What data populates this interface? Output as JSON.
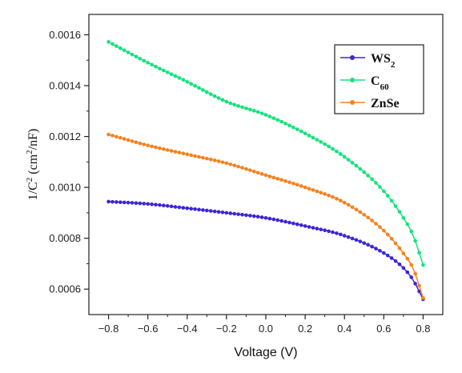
{
  "chart_data": {
    "type": "line",
    "title": "",
    "xlabel": "Voltage (V)",
    "ylabel": {
      "prefix": "1/C",
      "prefix_sup": "2",
      "unit_open": " (cm",
      "unit_sup": "2",
      "unit_close": "/nF)"
    },
    "xlim": [
      -0.9,
      0.9
    ],
    "ylim": [
      0.0005,
      0.00168
    ],
    "xticks": [
      -0.8,
      -0.6,
      -0.4,
      -0.2,
      0.0,
      0.2,
      0.4,
      0.6,
      0.8
    ],
    "xtick_labels": [
      "−0.8",
      "−0.6",
      "−0.4",
      "−0.2",
      "0.0",
      "0.2",
      "0.4",
      "0.6",
      "0.8"
    ],
    "yticks": [
      0.0006,
      0.0008,
      0.001,
      0.0012,
      0.0014,
      0.0016
    ],
    "ytick_labels": [
      "0.0006",
      "0.0008",
      "0.0010",
      "0.0012",
      "0.0014",
      "0.0016"
    ],
    "grid": false,
    "legend_position": "top-right",
    "x": [
      -0.8,
      -0.6,
      -0.4,
      -0.2,
      0.0,
      0.2,
      0.4,
      0.6,
      0.7,
      0.75,
      0.8
    ],
    "series": [
      {
        "name": "WS",
        "name_sub": "2",
        "color": "#3b27d4",
        "values": [
          0.000944,
          0.000935,
          0.000918,
          0.0009,
          0.00088,
          0.000848,
          0.00081,
          0.000742,
          0.000683,
          0.000635,
          0.00056
        ]
      },
      {
        "name": "C",
        "name_sub": "60",
        "color": "#14e47c",
        "values": [
          0.001572,
          0.00149,
          0.001415,
          0.001337,
          0.001285,
          0.001212,
          0.00112,
          0.000985,
          0.00088,
          0.00081,
          0.000695
        ]
      },
      {
        "name": "ZnSe",
        "name_sub": "",
        "color": "#f5821f",
        "values": [
          0.001208,
          0.001165,
          0.00113,
          0.001095,
          0.001048,
          0.001,
          0.00094,
          0.00083,
          0.00074,
          0.00068,
          0.000565
        ]
      }
    ]
  }
}
